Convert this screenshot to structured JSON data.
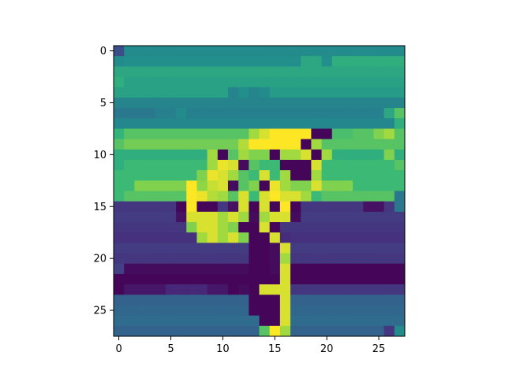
{
  "chart_data": {
    "type": "heatmap",
    "colormap": "viridis",
    "vmin": 0,
    "vmax": 1,
    "rows": 28,
    "cols": 28,
    "x_ticks": [
      0,
      5,
      10,
      15,
      20,
      25
    ],
    "y_ticks": [
      0,
      5,
      10,
      15,
      20,
      25
    ],
    "xlim": [
      -0.5,
      27.5
    ],
    "ylim": [
      27.5,
      -0.5
    ],
    "grid": false,
    "values": [
      [
        0.3,
        0.6,
        0.6,
        0.6,
        0.6,
        0.6,
        0.6,
        0.6,
        0.6,
        0.6,
        0.6,
        0.6,
        0.6,
        0.6,
        0.6,
        0.6,
        0.6,
        0.6,
        0.6,
        0.6,
        0.6,
        0.6,
        0.6,
        0.6,
        0.6,
        0.6,
        0.6,
        0.6
      ],
      [
        0.6,
        0.62,
        0.62,
        0.62,
        0.62,
        0.62,
        0.62,
        0.62,
        0.62,
        0.62,
        0.62,
        0.62,
        0.62,
        0.62,
        0.62,
        0.62,
        0.62,
        0.62,
        0.7,
        0.7,
        0.62,
        0.72,
        0.72,
        0.72,
        0.72,
        0.72,
        0.72,
        0.72
      ],
      [
        0.7,
        0.7,
        0.7,
        0.7,
        0.7,
        0.7,
        0.7,
        0.7,
        0.7,
        0.7,
        0.7,
        0.7,
        0.7,
        0.7,
        0.7,
        0.7,
        0.7,
        0.7,
        0.7,
        0.7,
        0.7,
        0.7,
        0.7,
        0.7,
        0.7,
        0.7,
        0.7,
        0.7
      ],
      [
        0.72,
        0.68,
        0.68,
        0.68,
        0.68,
        0.68,
        0.68,
        0.68,
        0.68,
        0.68,
        0.68,
        0.68,
        0.68,
        0.68,
        0.68,
        0.68,
        0.68,
        0.68,
        0.68,
        0.68,
        0.68,
        0.68,
        0.68,
        0.68,
        0.68,
        0.68,
        0.68,
        0.68
      ],
      [
        0.68,
        0.68,
        0.68,
        0.68,
        0.68,
        0.68,
        0.68,
        0.68,
        0.68,
        0.68,
        0.68,
        0.56,
        0.62,
        0.56,
        0.6,
        0.66,
        0.66,
        0.66,
        0.66,
        0.66,
        0.66,
        0.66,
        0.66,
        0.66,
        0.66,
        0.66,
        0.66,
        0.66
      ],
      [
        0.56,
        0.56,
        0.56,
        0.56,
        0.56,
        0.56,
        0.56,
        0.56,
        0.56,
        0.56,
        0.56,
        0.56,
        0.56,
        0.56,
        0.56,
        0.56,
        0.56,
        0.56,
        0.56,
        0.56,
        0.56,
        0.56,
        0.56,
        0.56,
        0.56,
        0.56,
        0.56,
        0.56
      ],
      [
        0.5,
        0.5,
        0.5,
        0.5,
        0.54,
        0.54,
        0.6,
        0.54,
        0.54,
        0.54,
        0.54,
        0.54,
        0.54,
        0.54,
        0.54,
        0.54,
        0.54,
        0.54,
        0.54,
        0.54,
        0.54,
        0.54,
        0.54,
        0.54,
        0.54,
        0.54,
        0.7,
        0.8
      ],
      [
        0.58,
        0.58,
        0.58,
        0.58,
        0.58,
        0.58,
        0.58,
        0.58,
        0.58,
        0.58,
        0.58,
        0.58,
        0.58,
        0.58,
        0.58,
        0.58,
        0.58,
        0.58,
        0.58,
        0.58,
        0.58,
        0.58,
        0.58,
        0.58,
        0.58,
        0.58,
        0.58,
        0.72
      ],
      [
        0.74,
        0.8,
        0.8,
        0.8,
        0.8,
        0.8,
        0.8,
        0.8,
        0.8,
        0.8,
        0.8,
        0.8,
        0.8,
        0.9,
        0.96,
        1.0,
        1.0,
        1.0,
        1.0,
        0.02,
        0.02,
        0.78,
        0.78,
        0.8,
        0.8,
        0.86,
        0.9,
        0.8
      ],
      [
        0.8,
        0.84,
        0.84,
        0.84,
        0.84,
        0.84,
        0.84,
        0.84,
        0.84,
        0.84,
        0.84,
        0.84,
        0.92,
        1.0,
        1.0,
        1.0,
        1.0,
        1.0,
        0.02,
        0.9,
        0.8,
        0.8,
        0.8,
        0.8,
        0.8,
        0.8,
        0.8,
        0.8
      ],
      [
        0.72,
        0.72,
        0.72,
        0.72,
        0.72,
        0.72,
        0.72,
        0.72,
        0.72,
        0.9,
        0.02,
        0.8,
        0.9,
        0.86,
        0.86,
        0.02,
        0.9,
        0.9,
        0.96,
        0.02,
        0.9,
        0.72,
        0.72,
        0.72,
        0.72,
        0.72,
        0.86,
        0.72
      ],
      [
        0.72,
        0.76,
        0.76,
        0.76,
        0.76,
        0.76,
        0.76,
        0.76,
        0.76,
        0.9,
        0.98,
        0.96,
        0.04,
        0.8,
        0.76,
        0.76,
        0.02,
        0.02,
        0.02,
        0.96,
        0.76,
        0.76,
        0.76,
        0.76,
        0.76,
        0.76,
        0.76,
        0.8
      ],
      [
        0.76,
        0.76,
        0.76,
        0.76,
        0.76,
        0.76,
        0.76,
        0.76,
        0.86,
        0.98,
        0.96,
        0.9,
        0.8,
        0.76,
        0.96,
        0.76,
        0.9,
        0.02,
        0.02,
        0.9,
        0.76,
        0.76,
        0.76,
        0.76,
        0.76,
        0.76,
        0.76,
        0.76
      ],
      [
        0.76,
        0.76,
        0.86,
        0.86,
        0.86,
        0.86,
        0.86,
        1.0,
        0.88,
        0.94,
        0.96,
        0.04,
        0.8,
        0.86,
        0.02,
        0.98,
        0.9,
        0.86,
        0.86,
        0.96,
        0.86,
        0.86,
        0.86,
        0.76,
        0.76,
        0.76,
        0.76,
        0.76
      ],
      [
        0.76,
        0.8,
        0.8,
        0.8,
        0.8,
        0.8,
        0.8,
        1.0,
        0.98,
        0.92,
        0.9,
        0.8,
        0.96,
        0.76,
        0.96,
        1.0,
        0.96,
        0.96,
        0.9,
        0.76,
        0.8,
        0.8,
        0.8,
        0.8,
        0.8,
        0.8,
        0.8,
        0.5
      ],
      [
        0.2,
        0.2,
        0.2,
        0.2,
        0.2,
        0.2,
        0.02,
        1.0,
        0.02,
        0.02,
        0.2,
        0.06,
        0.96,
        0.02,
        0.96,
        0.02,
        1.0,
        0.02,
        0.2,
        0.2,
        0.2,
        0.2,
        0.2,
        0.2,
        0.06,
        0.06,
        0.2,
        0.5
      ],
      [
        0.22,
        0.22,
        0.22,
        0.22,
        0.22,
        0.22,
        0.06,
        0.96,
        0.96,
        0.96,
        0.9,
        0.96,
        0.9,
        0.04,
        0.9,
        0.96,
        0.96,
        0.04,
        0.22,
        0.22,
        0.22,
        0.22,
        0.22,
        0.22,
        0.22,
        0.22,
        0.22,
        0.22
      ],
      [
        0.2,
        0.2,
        0.2,
        0.2,
        0.2,
        0.2,
        0.2,
        0.86,
        0.96,
        0.96,
        0.9,
        0.86,
        0.02,
        0.02,
        0.96,
        0.02,
        0.2,
        0.2,
        0.2,
        0.2,
        0.2,
        0.2,
        0.2,
        0.2,
        0.2,
        0.2,
        0.2,
        0.2
      ],
      [
        0.18,
        0.18,
        0.18,
        0.18,
        0.18,
        0.18,
        0.18,
        0.18,
        0.9,
        0.96,
        0.9,
        0.96,
        0.86,
        0.02,
        0.02,
        0.96,
        0.16,
        0.18,
        0.18,
        0.18,
        0.18,
        0.18,
        0.18,
        0.18,
        0.18,
        0.18,
        0.18,
        0.18
      ],
      [
        0.22,
        0.22,
        0.22,
        0.22,
        0.22,
        0.22,
        0.22,
        0.22,
        0.22,
        0.22,
        0.22,
        0.22,
        0.22,
        0.02,
        0.02,
        0.04,
        0.96,
        0.22,
        0.22,
        0.22,
        0.22,
        0.22,
        0.22,
        0.22,
        0.22,
        0.22,
        0.22,
        0.22
      ],
      [
        0.2,
        0.2,
        0.2,
        0.2,
        0.2,
        0.2,
        0.2,
        0.2,
        0.2,
        0.2,
        0.2,
        0.2,
        0.2,
        0.02,
        0.02,
        0.04,
        0.9,
        0.2,
        0.2,
        0.2,
        0.2,
        0.2,
        0.2,
        0.2,
        0.2,
        0.2,
        0.2,
        0.2
      ],
      [
        0.24,
        0.04,
        0.04,
        0.04,
        0.04,
        0.04,
        0.04,
        0.04,
        0.04,
        0.04,
        0.04,
        0.04,
        0.04,
        0.02,
        0.02,
        0.04,
        0.96,
        0.02,
        0.02,
        0.02,
        0.02,
        0.02,
        0.02,
        0.02,
        0.02,
        0.02,
        0.02,
        0.02
      ],
      [
        0.02,
        0.02,
        0.02,
        0.02,
        0.02,
        0.02,
        0.02,
        0.02,
        0.02,
        0.02,
        0.02,
        0.02,
        0.02,
        0.02,
        0.02,
        0.02,
        0.96,
        0.02,
        0.02,
        0.02,
        0.02,
        0.02,
        0.02,
        0.02,
        0.02,
        0.02,
        0.02,
        0.02
      ],
      [
        0.02,
        0.08,
        0.08,
        0.08,
        0.08,
        0.14,
        0.14,
        0.14,
        0.14,
        0.08,
        0.08,
        0.02,
        0.04,
        0.02,
        0.96,
        0.96,
        0.96,
        0.2,
        0.2,
        0.2,
        0.2,
        0.2,
        0.2,
        0.2,
        0.2,
        0.2,
        0.2,
        0.2
      ],
      [
        0.4,
        0.4,
        0.4,
        0.4,
        0.4,
        0.4,
        0.4,
        0.4,
        0.4,
        0.4,
        0.4,
        0.4,
        0.4,
        0.02,
        0.02,
        0.02,
        0.96,
        0.4,
        0.4,
        0.4,
        0.4,
        0.4,
        0.4,
        0.4,
        0.4,
        0.4,
        0.4,
        0.4
      ],
      [
        0.42,
        0.42,
        0.42,
        0.42,
        0.42,
        0.42,
        0.42,
        0.42,
        0.42,
        0.42,
        0.42,
        0.42,
        0.42,
        0.02,
        0.02,
        0.02,
        0.96,
        0.42,
        0.42,
        0.42,
        0.42,
        0.42,
        0.42,
        0.42,
        0.42,
        0.42,
        0.42,
        0.42
      ],
      [
        0.44,
        0.44,
        0.44,
        0.44,
        0.44,
        0.44,
        0.44,
        0.44,
        0.44,
        0.44,
        0.44,
        0.44,
        0.44,
        0.44,
        0.02,
        0.02,
        0.96,
        0.44,
        0.44,
        0.44,
        0.44,
        0.44,
        0.44,
        0.44,
        0.44,
        0.44,
        0.44,
        0.44
      ],
      [
        0.4,
        0.4,
        0.4,
        0.4,
        0.4,
        0.4,
        0.4,
        0.4,
        0.4,
        0.4,
        0.4,
        0.4,
        0.4,
        0.4,
        0.8,
        1.0,
        0.9,
        0.4,
        0.4,
        0.4,
        0.4,
        0.4,
        0.4,
        0.4,
        0.4,
        0.4,
        0.2,
        0.6
      ]
    ]
  }
}
